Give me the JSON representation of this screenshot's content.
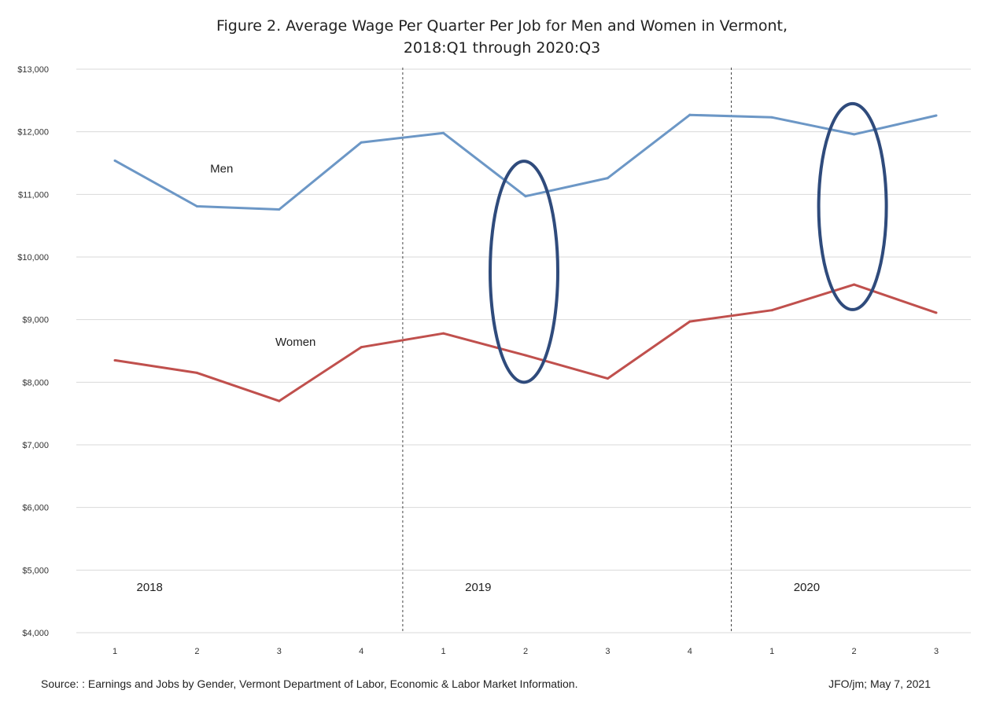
{
  "chart_data": {
    "type": "line",
    "title_line1": "Figure 2. Average Wage Per Quarter Per Job for Men and Women in Vermont,",
    "title_line2": "2018:Q1 through 2020:Q3",
    "categories": [
      "1",
      "2",
      "3",
      "4",
      "1",
      "2",
      "3",
      "4",
      "1",
      "2",
      "3"
    ],
    "year_labels": [
      {
        "label": "2018",
        "at_index": 0.5
      },
      {
        "label": "2019",
        "at_index": 4.5
      },
      {
        "label": "2020",
        "at_index": 8.5
      }
    ],
    "dividers_before_index": [
      4,
      8
    ],
    "ylim": [
      4000,
      13000
    ],
    "yticks": [
      {
        "value": 4000,
        "label": "$4,000"
      },
      {
        "value": 5000,
        "label": "$5,000"
      },
      {
        "value": 6000,
        "label": "$6,000"
      },
      {
        "value": 7000,
        "label": "$7,000"
      },
      {
        "value": 8000,
        "label": "$8,000"
      },
      {
        "value": 9000,
        "label": "$9,000"
      },
      {
        "value": 10000,
        "label": "$10,000"
      },
      {
        "value": 11000,
        "label": "$11,000"
      },
      {
        "value": 12000,
        "label": "$12,000"
      },
      {
        "value": 13000,
        "label": "$13,000"
      }
    ],
    "grid": true,
    "series": [
      {
        "name": "Men",
        "color": "#6c97c6",
        "values": [
          11540,
          10810,
          10760,
          11830,
          11980,
          10970,
          11260,
          12270,
          12230,
          11960,
          12260
        ],
        "label_at": {
          "index": 1.3,
          "value": 11350
        }
      },
      {
        "name": "Women",
        "color": "#c0504d",
        "values": [
          8350,
          8150,
          7700,
          8560,
          8780,
          8430,
          8060,
          8970,
          9150,
          9560,
          9110
        ],
        "label_at": {
          "index": 2.2,
          "value": 8580
        }
      }
    ],
    "highlight_ellipses": [
      {
        "center_index": 5,
        "y_min": 8000,
        "y_max": 11530
      },
      {
        "center_index": 9,
        "y_min": 9160,
        "y_max": 12450
      }
    ],
    "highlight_color": "#2f4b7c"
  },
  "footer": {
    "source": "Source: : Earnings and Jobs by Gender, Vermont Department of Labor,  Economic & Labor Market Information.",
    "credit": "JFO/jm; May 7, 2021"
  }
}
